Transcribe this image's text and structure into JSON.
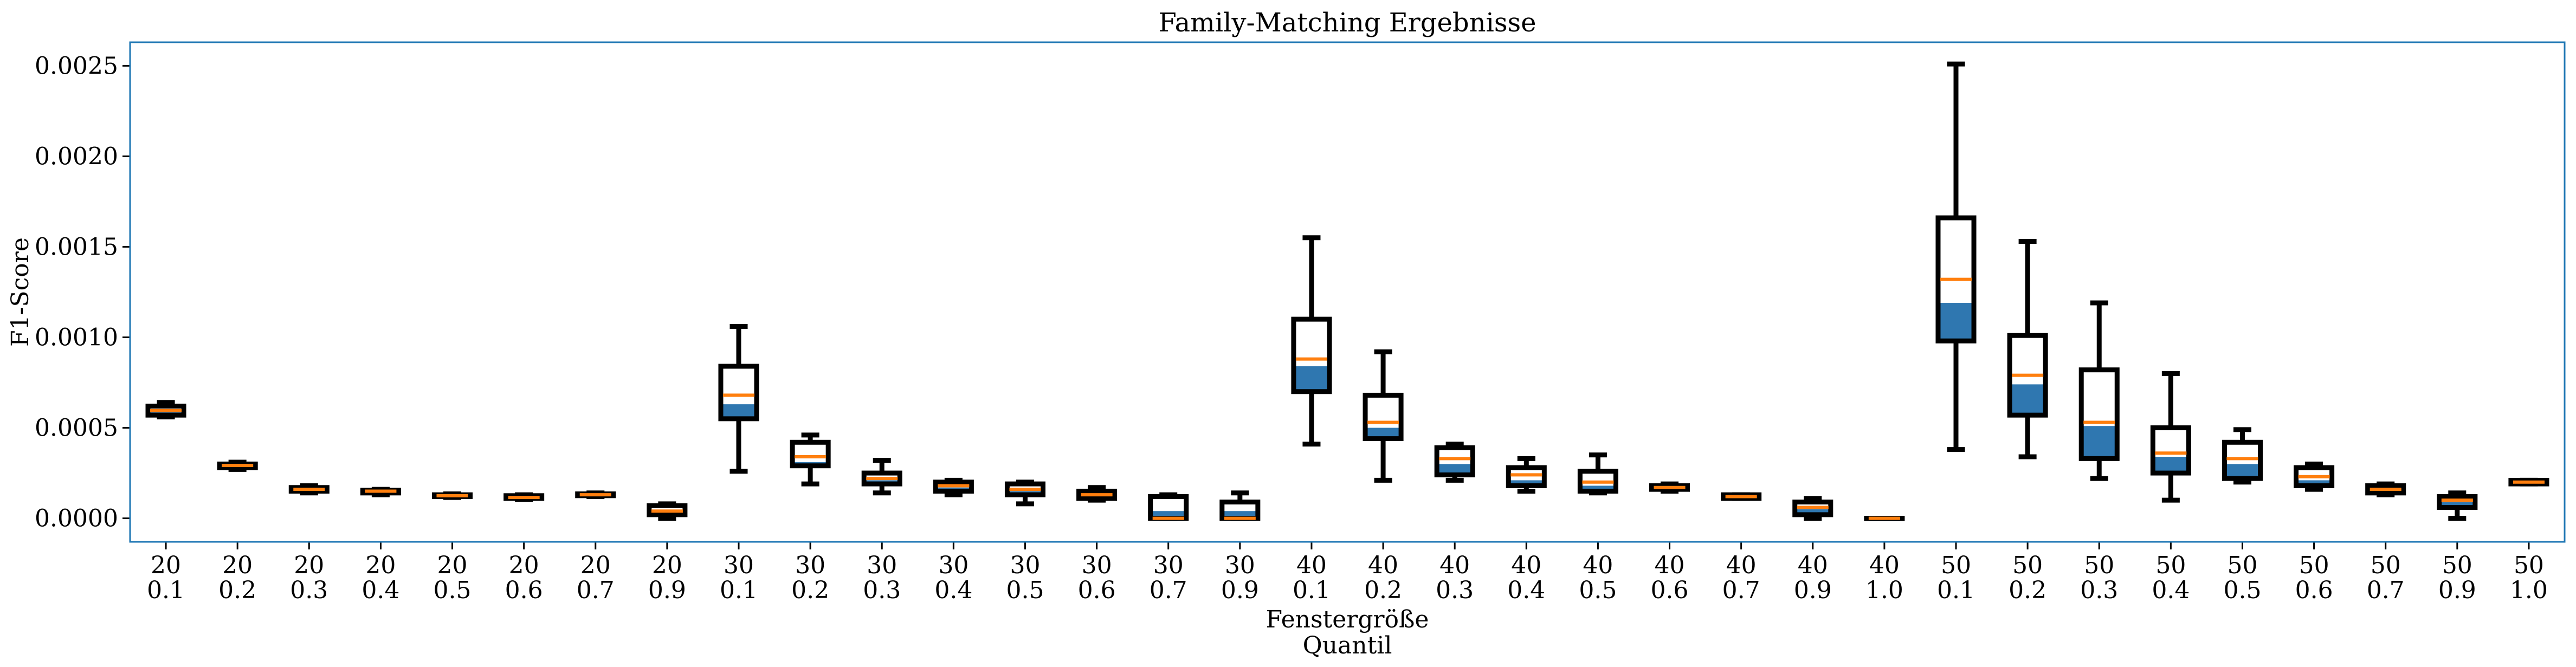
{
  "chart_data": {
    "type": "box",
    "title": "Family-Matching Ergebnisse",
    "xlabel_line1": "Fenstergröße",
    "xlabel_line2": "Quantil",
    "ylabel": "F1-Score",
    "ylim": [
      -0.00013,
      0.00263
    ],
    "yticks": [
      0.0,
      0.0005,
      0.001,
      0.0015,
      0.002,
      0.0025
    ],
    "ytick_labels": [
      "0.0000",
      "0.0005",
      "0.0010",
      "0.0015",
      "0.0020",
      "0.0025"
    ],
    "grid": false,
    "colors": {
      "box_edge": "#000000",
      "fill": "#2f77b0",
      "median": "#ff7f0e",
      "spine": "#1f77b4"
    },
    "categories": [
      {
        "window": "20",
        "quantile": "0.1"
      },
      {
        "window": "20",
        "quantile": "0.2"
      },
      {
        "window": "20",
        "quantile": "0.3"
      },
      {
        "window": "20",
        "quantile": "0.4"
      },
      {
        "window": "20",
        "quantile": "0.5"
      },
      {
        "window": "20",
        "quantile": "0.6"
      },
      {
        "window": "20",
        "quantile": "0.7"
      },
      {
        "window": "20",
        "quantile": "0.9"
      },
      {
        "window": "30",
        "quantile": "0.1"
      },
      {
        "window": "30",
        "quantile": "0.2"
      },
      {
        "window": "30",
        "quantile": "0.3"
      },
      {
        "window": "30",
        "quantile": "0.4"
      },
      {
        "window": "30",
        "quantile": "0.5"
      },
      {
        "window": "30",
        "quantile": "0.6"
      },
      {
        "window": "30",
        "quantile": "0.7"
      },
      {
        "window": "30",
        "quantile": "0.9"
      },
      {
        "window": "40",
        "quantile": "0.1"
      },
      {
        "window": "40",
        "quantile": "0.2"
      },
      {
        "window": "40",
        "quantile": "0.3"
      },
      {
        "window": "40",
        "quantile": "0.4"
      },
      {
        "window": "40",
        "quantile": "0.5"
      },
      {
        "window": "40",
        "quantile": "0.6"
      },
      {
        "window": "40",
        "quantile": "0.7"
      },
      {
        "window": "40",
        "quantile": "0.9"
      },
      {
        "window": "40",
        "quantile": "1.0"
      },
      {
        "window": "50",
        "quantile": "0.1"
      },
      {
        "window": "50",
        "quantile": "0.2"
      },
      {
        "window": "50",
        "quantile": "0.3"
      },
      {
        "window": "50",
        "quantile": "0.4"
      },
      {
        "window": "50",
        "quantile": "0.5"
      },
      {
        "window": "50",
        "quantile": "0.6"
      },
      {
        "window": "50",
        "quantile": "0.7"
      },
      {
        "window": "50",
        "quantile": "0.9"
      },
      {
        "window": "50",
        "quantile": "1.0"
      }
    ],
    "boxes": [
      {
        "whislo": 0.00056,
        "q1": 0.00057,
        "med": 0.000595,
        "q3": 0.00062,
        "whishi": 0.00064,
        "fill": 0.000595
      },
      {
        "whislo": 0.00027,
        "q1": 0.00028,
        "med": 0.000292,
        "q3": 0.0003,
        "whishi": 0.00031,
        "fill": 0.000292
      },
      {
        "whislo": 0.00014,
        "q1": 0.00015,
        "med": 0.00016,
        "q3": 0.00017,
        "whishi": 0.00018,
        "fill": 0.00016
      },
      {
        "whislo": 0.00013,
        "q1": 0.00014,
        "med": 0.00015,
        "q3": 0.000155,
        "whishi": 0.00016,
        "fill": 0.00015
      },
      {
        "whislo": 0.000115,
        "q1": 0.00012,
        "med": 0.000125,
        "q3": 0.00013,
        "whishi": 0.000135,
        "fill": 0.000125
      },
      {
        "whislo": 0.000105,
        "q1": 0.00011,
        "med": 0.000115,
        "q3": 0.000125,
        "whishi": 0.00013,
        "fill": 0.000115
      },
      {
        "whislo": 0.00012,
        "q1": 0.000125,
        "med": 0.00013,
        "q3": 0.000135,
        "whishi": 0.00014,
        "fill": 0.00013
      },
      {
        "whislo": 0.0,
        "q1": 2e-05,
        "med": 4e-05,
        "q3": 7e-05,
        "whishi": 8e-05,
        "fill": 4e-05
      },
      {
        "whislo": 0.00026,
        "q1": 0.00055,
        "med": 0.00068,
        "q3": 0.00084,
        "whishi": 0.00106,
        "fill": 0.00063
      },
      {
        "whislo": 0.00019,
        "q1": 0.00029,
        "med": 0.00034,
        "q3": 0.00042,
        "whishi": 0.00046,
        "fill": 0.00031
      },
      {
        "whislo": 0.00014,
        "q1": 0.00019,
        "med": 0.00022,
        "q3": 0.00025,
        "whishi": 0.00032,
        "fill": 0.00021
      },
      {
        "whislo": 0.00013,
        "q1": 0.00015,
        "med": 0.00018,
        "q3": 0.0002,
        "whishi": 0.00021,
        "fill": 0.00017
      },
      {
        "whislo": 8e-05,
        "q1": 0.00013,
        "med": 0.00016,
        "q3": 0.00019,
        "whishi": 0.0002,
        "fill": 0.00015
      },
      {
        "whislo": 0.0001,
        "q1": 0.00011,
        "med": 0.00013,
        "q3": 0.00015,
        "whishi": 0.00017,
        "fill": 0.00012
      },
      {
        "whislo": 0.0,
        "q1": 0.0,
        "med": 0.0,
        "q3": 0.00012,
        "whishi": 0.00013,
        "fill": 4e-05
      },
      {
        "whislo": 0.0,
        "q1": 0.0,
        "med": 0.0,
        "q3": 9e-05,
        "whishi": 0.00014,
        "fill": 4e-05
      },
      {
        "whislo": 0.00041,
        "q1": 0.0007,
        "med": 0.00088,
        "q3": 0.0011,
        "whishi": 0.00155,
        "fill": 0.00084
      },
      {
        "whislo": 0.00021,
        "q1": 0.00044,
        "med": 0.00053,
        "q3": 0.00068,
        "whishi": 0.00092,
        "fill": 0.0005
      },
      {
        "whislo": 0.00021,
        "q1": 0.00024,
        "med": 0.00033,
        "q3": 0.00039,
        "whishi": 0.00041,
        "fill": 0.0003
      },
      {
        "whislo": 0.00015,
        "q1": 0.00018,
        "med": 0.00024,
        "q3": 0.00028,
        "whishi": 0.00033,
        "fill": 0.00021
      },
      {
        "whislo": 0.00014,
        "q1": 0.00015,
        "med": 0.0002,
        "q3": 0.00026,
        "whishi": 0.00035,
        "fill": 0.00018
      },
      {
        "whislo": 0.00015,
        "q1": 0.00016,
        "med": 0.00017,
        "q3": 0.00018,
        "whishi": 0.00019,
        "fill": 0.00017
      },
      {
        "whislo": 0.00011,
        "q1": 0.00011,
        "med": 0.00012,
        "q3": 0.00013,
        "whishi": 0.00013,
        "fill": 0.00012
      },
      {
        "whislo": 0.0,
        "q1": 2e-05,
        "med": 6e-05,
        "q3": 9e-05,
        "whishi": 0.00011,
        "fill": 5e-05
      },
      {
        "whislo": 0.0,
        "q1": 0.0,
        "med": 0.0,
        "q3": 0.0,
        "whishi": 0.0,
        "fill": 0.0
      },
      {
        "whislo": 0.00038,
        "q1": 0.00098,
        "med": 0.00132,
        "q3": 0.00166,
        "whishi": 0.00251,
        "fill": 0.00119
      },
      {
        "whislo": 0.00034,
        "q1": 0.00057,
        "med": 0.00079,
        "q3": 0.00101,
        "whishi": 0.00153,
        "fill": 0.00074
      },
      {
        "whislo": 0.00022,
        "q1": 0.00033,
        "med": 0.00053,
        "q3": 0.00082,
        "whishi": 0.00119,
        "fill": 0.00051
      },
      {
        "whislo": 0.0001,
        "q1": 0.00025,
        "med": 0.00036,
        "q3": 0.0005,
        "whishi": 0.0008,
        "fill": 0.00034
      },
      {
        "whislo": 0.0002,
        "q1": 0.00022,
        "med": 0.00033,
        "q3": 0.00042,
        "whishi": 0.00049,
        "fill": 0.0003
      },
      {
        "whislo": 0.00016,
        "q1": 0.00018,
        "med": 0.00023,
        "q3": 0.00028,
        "whishi": 0.0003,
        "fill": 0.00021
      },
      {
        "whislo": 0.00013,
        "q1": 0.00014,
        "med": 0.00016,
        "q3": 0.00018,
        "whishi": 0.00019,
        "fill": 0.00016
      },
      {
        "whislo": 0.0,
        "q1": 6e-05,
        "med": 0.0001,
        "q3": 0.00012,
        "whishi": 0.00014,
        "fill": 9e-05
      },
      {
        "whislo": 0.00019,
        "q1": 0.00019,
        "med": 0.0002,
        "q3": 0.00021,
        "whishi": 0.00021,
        "fill": 0.0002
      }
    ]
  }
}
